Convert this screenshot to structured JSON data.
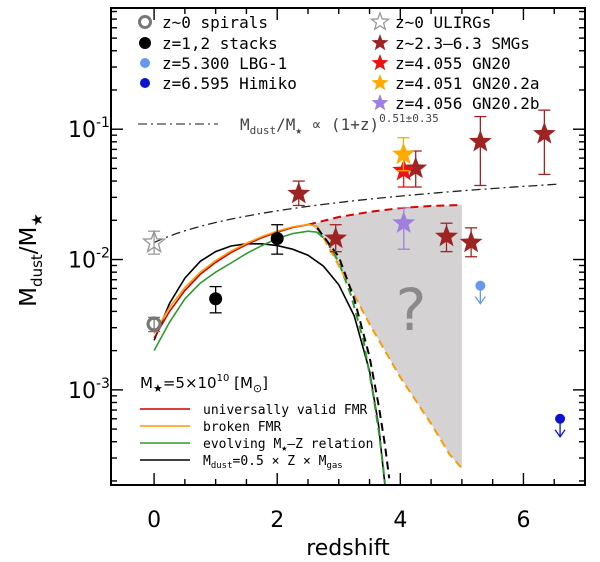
{
  "chart_data": {
    "type": "scatter",
    "xlabel": "redshift",
    "ylabel_main": "M",
    "ylabel_sub1": "dust",
    "ylabel_slash": "/M",
    "ylabel_sub2": "★",
    "xlim": [
      -0.7,
      7.0
    ],
    "ylim_log10": [
      -3.73,
      -0.07
    ],
    "yscale": "log",
    "x_ticks": [
      0,
      2,
      4,
      6
    ],
    "x_tick_labels": [
      "0",
      "2",
      "4",
      "6"
    ],
    "y_ticks_log10": [
      -3,
      -2,
      -1
    ],
    "y_tick_labels": [
      {
        "base": "10",
        "exp": "-3"
      },
      {
        "base": "10",
        "exp": "-2"
      },
      {
        "base": "10",
        "exp": "-1"
      }
    ],
    "scaling_label": {
      "text": "M",
      "sub1": "dust",
      "mid": "/M",
      "sub2": "★",
      "prop": " ∝ (1+z)",
      "exp": "0.51±0.35"
    },
    "model_box": {
      "title_pre": "M",
      "title_sub": "★",
      "title_post": "=5×10",
      "title_exp": "10",
      "title_unit": " [M",
      "title_unit_sub": "⊙",
      "title_unit_end": "]",
      "lines": [
        {
          "name": "universally valid FMR",
          "color": "#cc0000"
        },
        {
          "name": "broken FMR",
          "color": "#ff9900"
        },
        {
          "name": "evolving M★–Z relation",
          "color": "#2e9b2e"
        },
        {
          "name": "Mdust=0.5 × Z × Mgas",
          "color": "#000000"
        }
      ],
      "line_labels": [
        "universally valid FMR",
        "broken FMR",
        "evolving M",
        "M"
      ],
      "line3_sub": "★",
      "line3_end": "–Z relation",
      "line4_sub": "dust",
      "line4_end": "=0.5 × Z × M",
      "line4_sub2": "gas"
    },
    "question_mark": "?",
    "legend_left": [
      {
        "label": "z~0 spirals",
        "marker": "ring",
        "color": "#777777"
      },
      {
        "label": "z=1,2 stacks",
        "marker": "dot",
        "color": "#000000"
      },
      {
        "label": "z=5.300 LBG-1",
        "marker": "dot",
        "color": "#6699ee"
      },
      {
        "label": "z=6.595 Himiko",
        "marker": "dot",
        "color": "#0a14d0"
      }
    ],
    "legend_right": [
      {
        "label": "z~0 ULIRGs",
        "marker": "star-open",
        "color": "#999999"
      },
      {
        "label": "z~2.3–6.3 SMGs",
        "marker": "star",
        "color": "#9e2424"
      },
      {
        "label": "z=4.055 GN20",
        "marker": "star",
        "color": "#ee1111"
      },
      {
        "label": "z=4.051 GN20.2a",
        "marker": "star",
        "color": "#ffaa00"
      },
      {
        "label": "z=4.056 GN20.2b",
        "marker": "star",
        "color": "#9f7fe0"
      }
    ],
    "series": [
      {
        "name": "z~0 spirals",
        "points": [
          {
            "x": 0.0,
            "y": 0.0032,
            "err_lo": 0.0004,
            "err_hi": 0.0004
          }
        ]
      },
      {
        "name": "z~0 ULIRGs",
        "points": [
          {
            "x": 0.0,
            "y": 0.0135,
            "err_lo": 0.0025,
            "err_hi": 0.003
          }
        ]
      },
      {
        "name": "z=1,2 stacks",
        "points": [
          {
            "x": 1.0,
            "y": 0.005,
            "err_lo": 0.0011,
            "err_hi": 0.0012
          },
          {
            "x": 2.0,
            "y": 0.0145,
            "err_lo": 0.0035,
            "err_hi": 0.004
          }
        ]
      },
      {
        "name": "z~2.3–6.3 SMGs",
        "points": [
          {
            "x": 2.35,
            "y": 0.032,
            "err_lo": 0.006,
            "err_hi": 0.008
          },
          {
            "x": 2.95,
            "y": 0.0145,
            "err_lo": 0.003,
            "err_hi": 0.004
          },
          {
            "x": 4.25,
            "y": 0.05,
            "err_lo": 0.014,
            "err_hi": 0.018
          },
          {
            "x": 4.75,
            "y": 0.015,
            "err_lo": 0.0035,
            "err_hi": 0.004
          },
          {
            "x": 5.15,
            "y": 0.0135,
            "err_lo": 0.003,
            "err_hi": 0.004
          },
          {
            "x": 5.3,
            "y": 0.08,
            "err_lo": 0.043,
            "err_hi": 0.045
          },
          {
            "x": 6.34,
            "y": 0.092,
            "err_lo": 0.047,
            "err_hi": 0.048
          }
        ]
      },
      {
        "name": "z=4.055 GN20",
        "points": [
          {
            "x": 4.055,
            "y": 0.048,
            "err_lo": 0.012,
            "err_hi": 0.016
          }
        ]
      },
      {
        "name": "z=4.051 GN20.2a",
        "points": [
          {
            "x": 4.051,
            "y": 0.064,
            "err_lo": 0.016,
            "err_hi": 0.022
          }
        ]
      },
      {
        "name": "z=4.056 GN20.2b",
        "points": [
          {
            "x": 4.056,
            "y": 0.019,
            "err_lo": 0.007,
            "err_hi": 0.006
          }
        ]
      },
      {
        "name": "z=5.300 LBG-1",
        "upper_limit": true,
        "points": [
          {
            "x": 5.3,
            "y": 0.0063
          }
        ]
      },
      {
        "name": "z=6.595 Himiko",
        "upper_limit": true,
        "points": [
          {
            "x": 6.595,
            "y": 0.0006
          }
        ]
      }
    ],
    "scaling_curve": {
      "name": "Mdust/M★ ∝ (1+z)^0.51",
      "x": [
        0.0,
        6.6
      ],
      "y_at_0": 0.0135,
      "slope": 0.51
    },
    "model_curves": [
      {
        "name": "Mdust=0.5 × Z × Mgas",
        "color": "#000000",
        "dash": "none",
        "points": [
          [
            0.0,
            0.0024
          ],
          [
            0.25,
            0.0046
          ],
          [
            0.5,
            0.0072
          ],
          [
            0.75,
            0.0097
          ],
          [
            1.0,
            0.0115
          ],
          [
            1.25,
            0.0127
          ],
          [
            1.5,
            0.0132
          ],
          [
            1.75,
            0.0132
          ],
          [
            2.0,
            0.0128
          ],
          [
            2.25,
            0.012
          ],
          [
            2.5,
            0.0108
          ],
          [
            2.75,
            0.0089
          ],
          [
            3.0,
            0.0064
          ],
          [
            3.25,
            0.0037
          ],
          [
            3.5,
            0.0014
          ],
          [
            3.65,
            0.00052
          ],
          [
            3.72,
            0.00025
          ],
          [
            3.75,
            0.00019
          ]
        ]
      },
      {
        "name": "universally valid FMR",
        "color": "#cc0000",
        "dash": "none",
        "points": [
          [
            0.0,
            0.0025
          ],
          [
            0.25,
            0.004
          ],
          [
            0.5,
            0.0058
          ],
          [
            0.75,
            0.0077
          ],
          [
            1.0,
            0.0095
          ],
          [
            1.25,
            0.0113
          ],
          [
            1.5,
            0.013
          ],
          [
            1.75,
            0.0147
          ],
          [
            2.0,
            0.0162
          ],
          [
            2.25,
            0.0176
          ],
          [
            2.5,
            0.0185
          ]
        ]
      },
      {
        "name": "universally valid FMR (extrapolated)",
        "color": "#dd0000",
        "dash": "8,5",
        "points": [
          [
            2.5,
            0.0185
          ],
          [
            3.0,
            0.0212
          ],
          [
            3.5,
            0.0232
          ],
          [
            4.0,
            0.0248
          ],
          [
            4.5,
            0.0258
          ],
          [
            5.0,
            0.0262
          ]
        ]
      },
      {
        "name": "broken FMR",
        "color": "#ff9900",
        "dash": "none",
        "points": [
          [
            0.0,
            0.0027
          ],
          [
            0.25,
            0.0043
          ],
          [
            0.5,
            0.0061
          ],
          [
            0.75,
            0.008
          ],
          [
            1.0,
            0.0098
          ],
          [
            1.25,
            0.0116
          ],
          [
            1.5,
            0.0133
          ],
          [
            1.75,
            0.015
          ],
          [
            2.0,
            0.0165
          ],
          [
            2.25,
            0.0178
          ],
          [
            2.5,
            0.0186
          ],
          [
            2.65,
            0.018
          ]
        ]
      },
      {
        "name": "evolving M★–Z relation",
        "color": "#2e9b2e",
        "dash": "none",
        "points": [
          [
            0.0,
            0.002
          ],
          [
            0.25,
            0.0033
          ],
          [
            0.5,
            0.005
          ],
          [
            0.75,
            0.0066
          ],
          [
            1.0,
            0.008
          ],
          [
            1.25,
            0.0094
          ],
          [
            1.5,
            0.0111
          ],
          [
            1.75,
            0.0128
          ],
          [
            2.0,
            0.0145
          ],
          [
            2.25,
            0.0158
          ],
          [
            2.5,
            0.0165
          ],
          [
            2.65,
            0.0162
          ]
        ]
      },
      {
        "name": "evolving M★–Z relation (extrapolated)",
        "color": "#2e9b2e",
        "dash": "8,5",
        "points": [
          [
            2.65,
            0.0162
          ],
          [
            2.8,
            0.014
          ],
          [
            3.0,
            0.0095
          ],
          [
            3.2,
            0.0053
          ],
          [
            3.4,
            0.0024
          ],
          [
            3.55,
            0.00098
          ],
          [
            3.65,
            0.00048
          ],
          [
            3.72,
            0.00026
          ],
          [
            3.75,
            0.00019
          ]
        ]
      },
      {
        "name": "broken FMR (extrapolated)",
        "color": "#ff9900",
        "dash": "8,5",
        "points": [
          [
            2.65,
            0.018
          ],
          [
            3.0,
            0.009
          ],
          [
            3.5,
            0.0032
          ],
          [
            4.0,
            0.00125
          ],
          [
            4.5,
            0.00055
          ],
          [
            4.8,
            0.00032
          ],
          [
            5.0,
            0.00025
          ]
        ]
      },
      {
        "name": "evolving M★–Z relation (lower)",
        "color": "#000000",
        "dash": "8,5",
        "points": [
          [
            2.65,
            0.0175
          ],
          [
            3.0,
            0.0105
          ],
          [
            3.25,
            0.005
          ],
          [
            3.5,
            0.0018
          ],
          [
            3.65,
            0.00075
          ],
          [
            3.75,
            0.00038
          ],
          [
            3.82,
            0.00021
          ]
        ]
      }
    ],
    "uncertainty_region": {
      "color": "#d4d2d2",
      "points": [
        [
          2.55,
          0.0185
        ],
        [
          3.0,
          0.0212
        ],
        [
          3.5,
          0.0232
        ],
        [
          4.0,
          0.0248
        ],
        [
          4.5,
          0.0258
        ],
        [
          5.0,
          0.0262
        ],
        [
          5.0,
          0.00025
        ],
        [
          4.8,
          0.00032
        ],
        [
          4.5,
          0.00055
        ],
        [
          4.0,
          0.00125
        ],
        [
          3.5,
          0.0032
        ],
        [
          3.0,
          0.009
        ],
        [
          2.75,
          0.015
        ]
      ]
    }
  }
}
